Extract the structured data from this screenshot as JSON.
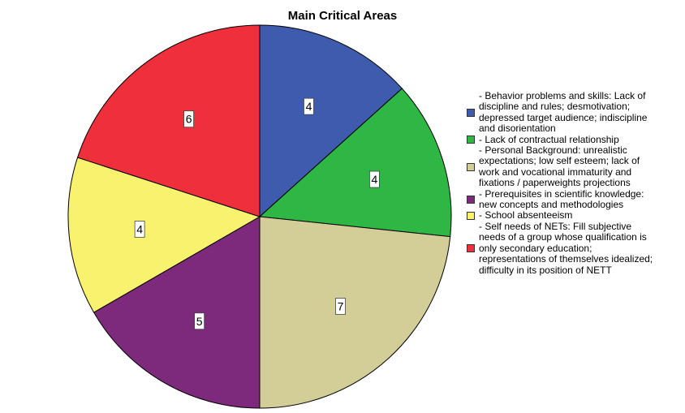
{
  "chart_data": {
    "type": "pie",
    "title": "Main Critical Areas",
    "start_angle_deg": 0,
    "direction": "clockwise",
    "legend_position": "right",
    "slices": [
      {
        "label": "- Behavior problems and skills: Lack of discipline and rules; desmotivation; depressed target audience; indiscipline and disorientation",
        "value": 4,
        "color": "#3F5BAE"
      },
      {
        "label": "- Lack of contractual relationship",
        "value": 4,
        "color": "#2FB745"
      },
      {
        "label": "- Personal Background: unrealistic expectations; low self esteem; lack of work and vocational immaturity and fixations / paperweights projections",
        "value": 7,
        "color": "#D3CD98"
      },
      {
        "label": "- Prerequisites in scientific knowledge: new concepts and methodologies",
        "value": 5,
        "color": "#7D2A7C"
      },
      {
        "label": "- School absenteeism",
        "value": 4,
        "color": "#F8F26F"
      },
      {
        "label": "- Self needs of NETs: Fill subjective needs of a group whose qualification is only secondary education; representations of themselves idealized; difficulty in its position of NETT",
        "value": 6,
        "color": "#EF2F3B"
      }
    ]
  }
}
